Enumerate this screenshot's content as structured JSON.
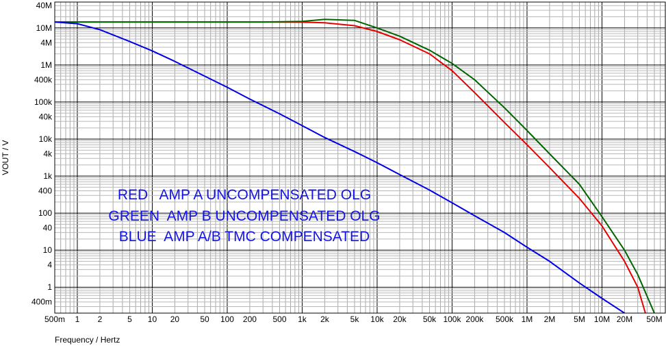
{
  "chart_data": {
    "type": "line",
    "xlabel": "Frequency / Hertz",
    "ylabel": "VOUT / V",
    "x_scale": "log",
    "y_scale": "log",
    "xlim": [
      0.5,
      70000000
    ],
    "ylim": [
      0.2,
      50000000
    ],
    "grid": true,
    "x_ticks": [
      {
        "v": 0.5,
        "label": "500m"
      },
      {
        "v": 1,
        "label": "1"
      },
      {
        "v": 2,
        "label": "2"
      },
      {
        "v": 5,
        "label": "5"
      },
      {
        "v": 10,
        "label": "10"
      },
      {
        "v": 20,
        "label": "20"
      },
      {
        "v": 50,
        "label": "50"
      },
      {
        "v": 100,
        "label": "100"
      },
      {
        "v": 200,
        "label": "200"
      },
      {
        "v": 500,
        "label": "500"
      },
      {
        "v": 1000,
        "label": "1k"
      },
      {
        "v": 2000,
        "label": "2k"
      },
      {
        "v": 5000,
        "label": "5k"
      },
      {
        "v": 10000,
        "label": "10k"
      },
      {
        "v": 20000,
        "label": "20k"
      },
      {
        "v": 50000,
        "label": "50k"
      },
      {
        "v": 100000,
        "label": "100k"
      },
      {
        "v": 200000,
        "label": "200k"
      },
      {
        "v": 500000,
        "label": "500k"
      },
      {
        "v": 1000000,
        "label": "1M"
      },
      {
        "v": 2000000,
        "label": "2M"
      },
      {
        "v": 5000000,
        "label": "5M"
      },
      {
        "v": 10000000,
        "label": "10M"
      },
      {
        "v": 20000000,
        "label": "20M"
      },
      {
        "v": 50000000,
        "label": "50M"
      }
    ],
    "y_ticks": [
      {
        "v": 0.4,
        "label": "400m"
      },
      {
        "v": 1,
        "label": "1"
      },
      {
        "v": 4,
        "label": "4"
      },
      {
        "v": 10,
        "label": "10"
      },
      {
        "v": 40,
        "label": "40"
      },
      {
        "v": 100,
        "label": "100"
      },
      {
        "v": 400,
        "label": "400"
      },
      {
        "v": 1000,
        "label": "1k"
      },
      {
        "v": 4000,
        "label": "4k"
      },
      {
        "v": 10000,
        "label": "10k"
      },
      {
        "v": 40000,
        "label": "40k"
      },
      {
        "v": 100000,
        "label": "100k"
      },
      {
        "v": 400000,
        "label": "400k"
      },
      {
        "v": 1000000,
        "label": "1M"
      },
      {
        "v": 4000000,
        "label": "4M"
      },
      {
        "v": 10000000,
        "label": "10M"
      },
      {
        "v": 40000000,
        "label": "40M"
      }
    ],
    "series": [
      {
        "color": "#e60000",
        "x": [
          0.5,
          300,
          1000,
          2000,
          5000,
          10000,
          20000,
          50000,
          100000,
          200000,
          500000,
          1000000,
          2000000,
          5000000,
          10000000,
          20000000,
          30000000,
          38000000
        ],
        "y": [
          14500000,
          14500000,
          14300000,
          13800000,
          11500000,
          8000000,
          4800000,
          2000000,
          700000,
          180000,
          28000,
          7000,
          1700,
          250,
          45,
          5,
          1,
          0.2
        ]
      },
      {
        "color": "#006400",
        "x": [
          0.5,
          300,
          1000,
          2000,
          5000,
          10000,
          20000,
          50000,
          100000,
          200000,
          500000,
          1000000,
          2000000,
          5000000,
          10000000,
          20000000,
          30000000,
          50000000
        ],
        "y": [
          14500000,
          14500000,
          15000000,
          17000000,
          16000000,
          10000000,
          6000000,
          2500000,
          1100000,
          400000,
          70000,
          17000,
          4000,
          600,
          80,
          10,
          2.2,
          0.2
        ]
      },
      {
        "color": "#0000e6",
        "x": [
          0.5,
          1,
          2,
          5,
          10,
          20,
          50,
          100,
          200,
          500,
          1000,
          2000,
          5000,
          10000,
          20000,
          50000,
          100000,
          200000,
          500000,
          1000000,
          2000000,
          5000000,
          10000000,
          20000000,
          30000000
        ],
        "y": [
          14500000,
          13000000,
          9000000,
          4300000,
          2400000,
          1250000,
          500000,
          250000,
          120000,
          48000,
          23000,
          11000,
          4600,
          2300,
          1100,
          420,
          190,
          85,
          30,
          12,
          5,
          1.3,
          0.5,
          0.2,
          0.08
        ]
      }
    ],
    "annotations": [
      "RED   AMP A UNCOMPENSATED OLG",
      "GREEN  AMP B UNCOMPENSATED OLG",
      "BLUE  AMP A/B TMC COMPENSATED"
    ]
  }
}
